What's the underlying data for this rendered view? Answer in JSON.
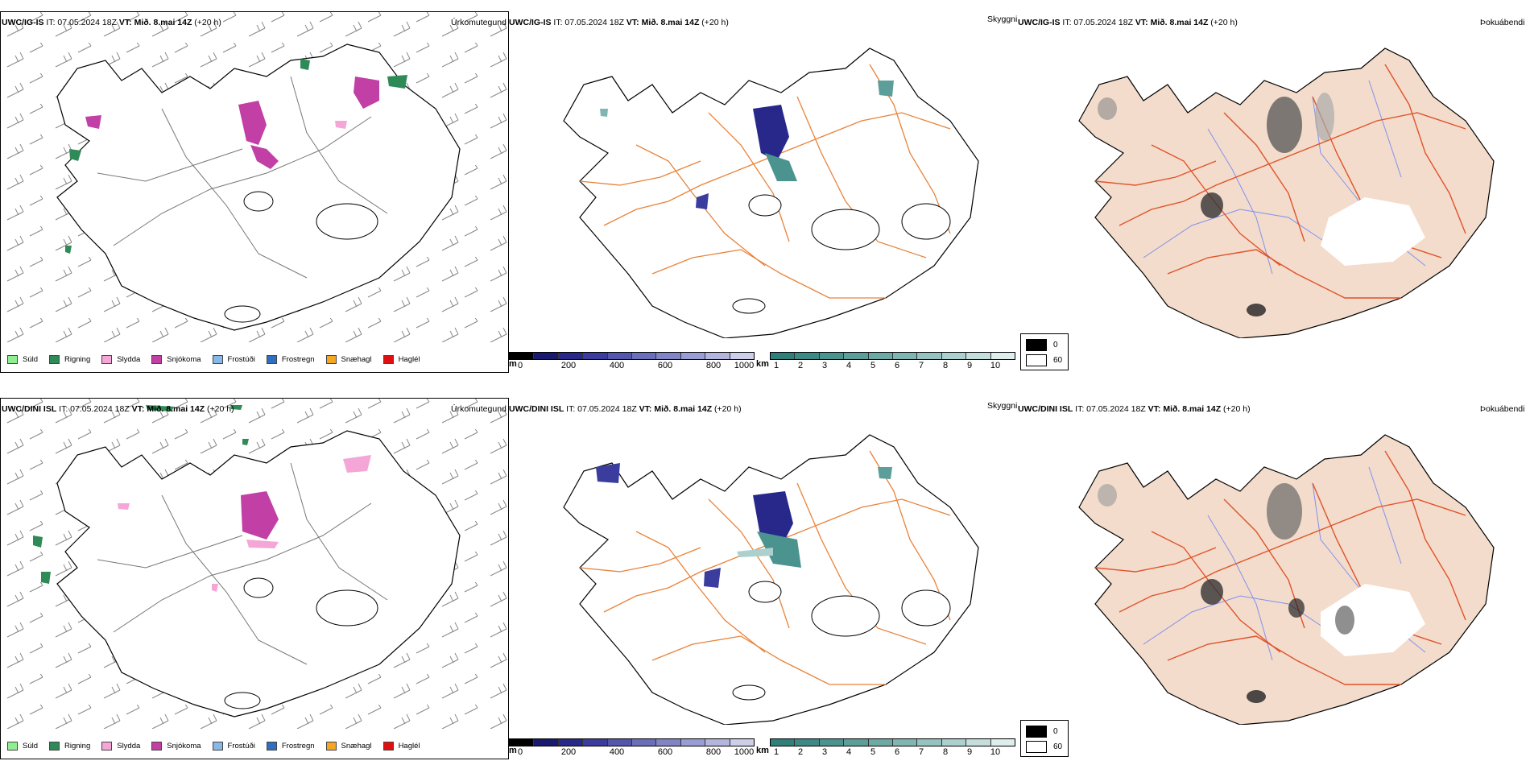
{
  "rows": [
    {
      "model": "UWC/IG-IS",
      "it": "IT: 07.05.2024 18Z",
      "vt_label": "VT:",
      "vt": "Mið. 8.mai 14Z",
      "lead": "(+20 h)"
    },
    {
      "model": "UWC/DINI ISL",
      "it": "IT: 07.05.2024 18Z",
      "vt_label": "VT:",
      "vt": "Mið. 8.mai 14Z",
      "lead": "(+20 h)"
    }
  ],
  "panels": {
    "precip_type": "Úrkomutegund",
    "visibility": "Skyggni",
    "fog": "Þokuábendi"
  },
  "precip_legend": [
    {
      "label": "Súld",
      "color": "#90ee90"
    },
    {
      "label": "Rigning",
      "color": "#2e8b57"
    },
    {
      "label": "Slydda",
      "color": "#f4a6d7"
    },
    {
      "label": "Snjókoma",
      "color": "#c23fa5"
    },
    {
      "label": "Frostúði",
      "color": "#87b8e8"
    },
    {
      "label": "Frostregn",
      "color": "#2f6fbf"
    },
    {
      "label": "Snæhagl",
      "color": "#f5a623"
    },
    {
      "label": "Haglél",
      "color": "#e01010"
    }
  ],
  "vis_scale_m": {
    "unit": "m",
    "ticks": [
      "0",
      "200",
      "400",
      "600",
      "800",
      "1000"
    ],
    "colors": [
      "#000000",
      "#191970",
      "#27288a",
      "#3a3d9e",
      "#5257ad",
      "#6a6fba",
      "#8185c6",
      "#9a9dd3",
      "#b3b5df",
      "#cdceea"
    ]
  },
  "vis_scale_km": {
    "unit": "km",
    "ticks": [
      "1",
      "2",
      "3",
      "4",
      "5",
      "6",
      "7",
      "8",
      "9",
      "10"
    ],
    "colors": [
      "#2f7f7a",
      "#3c8985",
      "#4b938f",
      "#5c9e9a",
      "#6daaa6",
      "#80b6b2",
      "#95c3bf",
      "#abd0cd",
      "#c3dedb",
      "#ddeeec"
    ]
  },
  "fog_key": {
    "high": "0",
    "low": "60"
  },
  "colors": {
    "land": "#f3dccb",
    "roads": "#e8833a",
    "fogroads": "#e0522a",
    "rivers": "#8090f0",
    "coast": "#000000"
  }
}
